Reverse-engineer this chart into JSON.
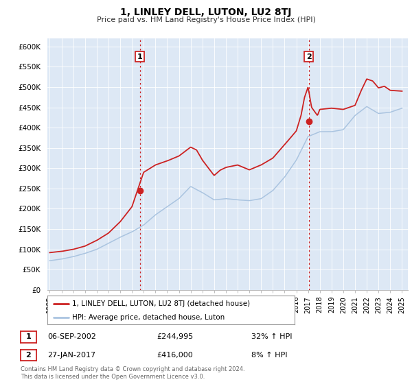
{
  "title": "1, LINLEY DELL, LUTON, LU2 8TJ",
  "subtitle": "Price paid vs. HM Land Registry's House Price Index (HPI)",
  "xlim": [
    1994.8,
    2025.5
  ],
  "ylim": [
    0,
    620000
  ],
  "yticks": [
    0,
    50000,
    100000,
    150000,
    200000,
    250000,
    300000,
    350000,
    400000,
    450000,
    500000,
    550000,
    600000
  ],
  "xticks": [
    1995,
    1996,
    1997,
    1998,
    1999,
    2000,
    2001,
    2002,
    2003,
    2004,
    2005,
    2006,
    2007,
    2008,
    2009,
    2010,
    2011,
    2012,
    2013,
    2014,
    2015,
    2016,
    2017,
    2018,
    2019,
    2020,
    2021,
    2022,
    2023,
    2024,
    2025
  ],
  "hpi_color": "#aac4e0",
  "price_color": "#cc2222",
  "sale1_x": 2002.68,
  "sale1_y": 244995,
  "sale2_x": 2017.07,
  "sale2_y": 416000,
  "vline1_x": 2002.68,
  "vline2_x": 2017.07,
  "bg_color": "#dde8f5",
  "legend_label1": "1, LINLEY DELL, LUTON, LU2 8TJ (detached house)",
  "legend_label2": "HPI: Average price, detached house, Luton",
  "table_rows": [
    {
      "num": "1",
      "date": "06-SEP-2002",
      "price": "£244,995",
      "hpi": "32% ↑ HPI"
    },
    {
      "num": "2",
      "date": "27-JAN-2017",
      "price": "£416,000",
      "hpi": "8% ↑ HPI"
    }
  ],
  "footnote": "Contains HM Land Registry data © Crown copyright and database right 2024.\nThis data is licensed under the Open Government Licence v3.0.",
  "hpi_anchors_yr": [
    1995,
    1996,
    1997,
    1998,
    1999,
    2000,
    2001,
    2002,
    2003,
    2004,
    2005,
    2006,
    2007,
    2008,
    2009,
    2010,
    2011,
    2012,
    2013,
    2014,
    2015,
    2016,
    2017,
    2018,
    2019,
    2020,
    2021,
    2022,
    2023,
    2024,
    2025
  ],
  "hpi_anchors_val": [
    72000,
    76000,
    82000,
    90000,
    100000,
    115000,
    130000,
    143000,
    160000,
    185000,
    205000,
    225000,
    255000,
    240000,
    222000,
    225000,
    222000,
    220000,
    225000,
    245000,
    278000,
    320000,
    378000,
    390000,
    390000,
    395000,
    430000,
    452000,
    435000,
    438000,
    448000
  ],
  "price_anchors_yr": [
    1995,
    1996,
    1997,
    1998,
    1999,
    2000,
    2001,
    2002,
    2002.5,
    2003,
    2004,
    2005,
    2006,
    2007,
    2007.5,
    2008,
    2009,
    2009.5,
    2010,
    2011,
    2012,
    2013,
    2014,
    2015,
    2016,
    2016.4,
    2016.7,
    2017.0,
    2017.3,
    2017.8,
    2018,
    2019,
    2020,
    2021,
    2021.5,
    2022,
    2022.5,
    2023,
    2023.5,
    2024,
    2025
  ],
  "price_anchors_val": [
    92000,
    95000,
    100000,
    108000,
    122000,
    140000,
    168000,
    205000,
    248000,
    290000,
    308000,
    318000,
    330000,
    352000,
    345000,
    320000,
    282000,
    295000,
    302000,
    308000,
    296000,
    308000,
    325000,
    358000,
    392000,
    430000,
    475000,
    500000,
    450000,
    430000,
    445000,
    448000,
    445000,
    455000,
    490000,
    520000,
    515000,
    498000,
    502000,
    492000,
    490000
  ]
}
